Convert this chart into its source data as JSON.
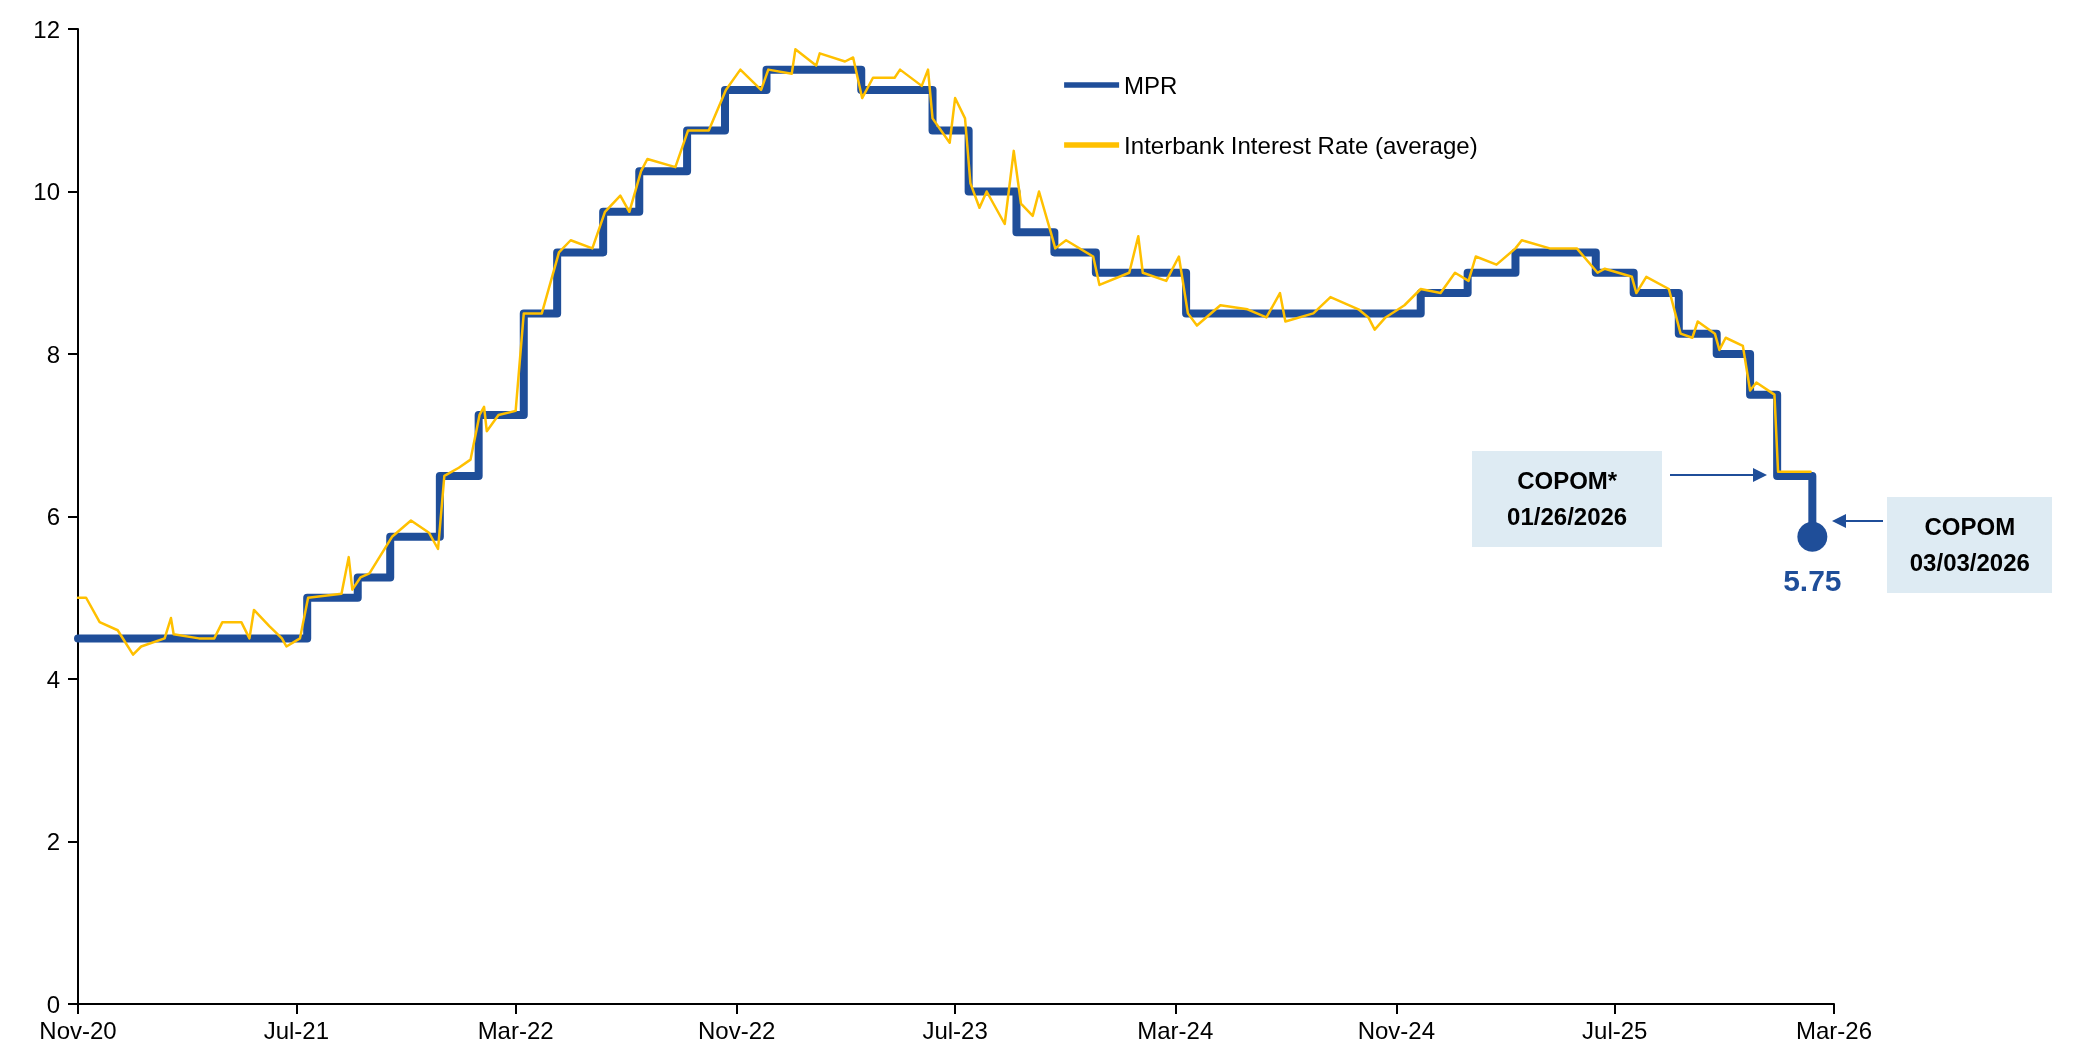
{
  "chart_data": {
    "type": "line",
    "xlim": [
      "2020-11-01",
      "2026-03-01"
    ],
    "xticks": [
      {
        "value": "2020-11-01",
        "label": "Nov-20"
      },
      {
        "value": "2021-07-01",
        "label": "Jul-21"
      },
      {
        "value": "2022-03-01",
        "label": "Mar-22"
      },
      {
        "value": "2022-11-01",
        "label": "Nov-22"
      },
      {
        "value": "2023-07-01",
        "label": "Jul-23"
      },
      {
        "value": "2024-03-01",
        "label": "Mar-24"
      },
      {
        "value": "2024-11-01",
        "label": "Nov-24"
      },
      {
        "value": "2025-07-01",
        "label": "Jul-25"
      },
      {
        "value": "2026-03-01",
        "label": "Mar-26"
      }
    ],
    "ylim": [
      0,
      12
    ],
    "yticks": [
      0,
      2,
      4,
      6,
      8,
      10,
      12
    ],
    "grid": false,
    "legend": "top right",
    "series": [
      {
        "name": "MPR",
        "type": "step",
        "color": "#1f4e99",
        "x": [
          "2020-11-01",
          "2021-07-13",
          "2021-09-07",
          "2021-10-13",
          "2021-12-07",
          "2022-01-19",
          "2022-03-10",
          "2022-04-16",
          "2022-06-06",
          "2022-07-16",
          "2022-09-07",
          "2022-10-19",
          "2022-12-04",
          "2023-03-19",
          "2023-06-06",
          "2023-07-16",
          "2023-09-07",
          "2023-10-19",
          "2023-12-04",
          "2024-03-13",
          "2024-11-28",
          "2025-01-19",
          "2025-03-13",
          "2025-06-10",
          "2025-07-22",
          "2025-09-10",
          "2025-10-22",
          "2025-11-28",
          "2025-12-28",
          "2026-02-05"
        ],
        "values": [
          4.5,
          5.0,
          5.25,
          5.75,
          6.5,
          7.25,
          8.5,
          9.25,
          9.75,
          10.25,
          10.75,
          11.25,
          11.5,
          11.25,
          10.75,
          10.0,
          9.5,
          9.25,
          9.0,
          8.5,
          8.75,
          9.0,
          9.25,
          9.0,
          8.75,
          8.25,
          8.0,
          7.5,
          6.5,
          5.75
        ],
        "value_labels": [
          null,
          null,
          null,
          null,
          null,
          null,
          null,
          null,
          null,
          null,
          null,
          null,
          null,
          null,
          null,
          null,
          null,
          null,
          null,
          null,
          null,
          null,
          null,
          null,
          null,
          null,
          null,
          null,
          null,
          "5.75"
        ]
      },
      {
        "name": "Interbank Interest Rate (average)",
        "color": "#ffc000",
        "x": [
          "2020-11-01",
          "2020-11-10",
          "2020-11-25",
          "2020-12-15",
          "2021-01-01",
          "2021-01-10",
          "2021-02-05",
          "2021-02-12",
          "2021-02-15",
          "2021-03-15",
          "2021-04-01",
          "2021-04-10",
          "2021-05-01",
          "2021-05-10",
          "2021-05-15",
          "2021-06-01",
          "2021-06-15",
          "2021-06-20",
          "2021-07-05",
          "2021-07-14",
          "2021-08-20",
          "2021-08-28",
          "2021-09-01",
          "2021-09-10",
          "2021-09-20",
          "2021-10-15",
          "2021-11-05",
          "2021-11-25",
          "2021-12-05",
          "2021-12-12",
          "2021-12-28",
          "2022-01-10",
          "2022-01-20",
          "2022-01-25",
          "2022-01-28",
          "2022-02-10",
          "2022-03-01",
          "2022-03-10",
          "2022-03-30",
          "2022-04-18",
          "2022-05-01",
          "2022-05-25",
          "2022-06-08",
          "2022-06-25",
          "2022-07-05",
          "2022-07-18",
          "2022-07-25",
          "2022-08-25",
          "2022-09-08",
          "2022-10-01",
          "2022-10-20",
          "2022-11-05",
          "2022-11-28",
          "2022-12-06",
          "2023-01-01",
          "2023-01-05",
          "2023-01-28",
          "2023-02-01",
          "2023-03-01",
          "2023-03-10",
          "2023-03-20",
          "2023-04-01",
          "2023-04-25",
          "2023-05-01",
          "2023-05-25",
          "2023-06-01",
          "2023-06-06",
          "2023-06-25",
          "2023-07-01",
          "2023-07-12",
          "2023-07-18",
          "2023-07-28",
          "2023-08-05",
          "2023-08-25",
          "2023-09-04",
          "2023-09-12",
          "2023-09-25",
          "2023-10-02",
          "2023-10-15",
          "2023-10-20",
          "2023-11-01",
          "2023-12-01",
          "2023-12-08",
          "2024-01-10",
          "2024-01-20",
          "2024-01-25",
          "2024-02-20",
          "2024-03-05",
          "2024-03-15",
          "2024-03-25",
          "2024-04-20",
          "2024-05-20",
          "2024-06-10",
          "2024-06-25",
          "2024-07-01",
          "2024-08-01",
          "2024-08-20",
          "2024-09-20",
          "2024-10-01",
          "2024-10-08",
          "2024-10-20",
          "2024-11-10",
          "2024-11-28",
          "2024-12-20",
          "2025-01-05",
          "2025-01-20",
          "2025-01-28",
          "2025-02-20",
          "2025-03-13",
          "2025-03-20",
          "2025-04-20",
          "2025-05-20",
          "2025-06-12",
          "2025-06-20",
          "2025-07-20",
          "2025-07-25",
          "2025-08-05",
          "2025-08-30",
          "2025-09-12",
          "2025-09-25",
          "2025-10-01",
          "2025-10-20",
          "2025-10-25",
          "2025-11-01",
          "2025-11-20",
          "2025-11-28",
          "2025-12-05",
          "2025-12-25",
          "2025-12-29",
          "2026-01-15",
          "2026-02-03"
        ],
        "values": [
          5.0,
          5.0,
          4.7,
          4.6,
          4.3,
          4.4,
          4.5,
          4.75,
          4.55,
          4.5,
          4.5,
          4.7,
          4.7,
          4.5,
          4.85,
          4.65,
          4.5,
          4.4,
          4.5,
          5.0,
          5.05,
          5.5,
          5.1,
          5.25,
          5.3,
          5.75,
          5.95,
          5.8,
          5.6,
          6.5,
          6.6,
          6.7,
          7.25,
          7.35,
          7.05,
          7.25,
          7.3,
          8.5,
          8.5,
          9.25,
          9.4,
          9.3,
          9.75,
          9.95,
          9.75,
          10.25,
          10.4,
          10.3,
          10.75,
          10.75,
          11.25,
          11.5,
          11.25,
          11.5,
          11.45,
          11.75,
          11.55,
          11.7,
          11.6,
          11.65,
          11.15,
          11.4,
          11.4,
          11.5,
          11.3,
          11.5,
          10.9,
          10.6,
          11.15,
          10.9,
          10.1,
          9.8,
          10.0,
          9.6,
          10.5,
          9.85,
          9.7,
          10.0,
          9.5,
          9.3,
          9.4,
          9.2,
          8.85,
          9.0,
          9.45,
          9.0,
          8.9,
          9.2,
          8.5,
          8.35,
          8.6,
          8.55,
          8.45,
          8.75,
          8.4,
          8.5,
          8.7,
          8.55,
          8.45,
          8.3,
          8.45,
          8.6,
          8.8,
          8.75,
          9.0,
          8.9,
          9.2,
          9.1,
          9.3,
          9.4,
          9.3,
          9.3,
          9.0,
          9.05,
          8.95,
          8.75,
          8.95,
          8.8,
          8.25,
          8.2,
          8.4,
          8.25,
          8.05,
          8.2,
          8.1,
          7.55,
          7.65,
          7.5,
          6.55,
          6.55,
          6.55
        ]
      }
    ],
    "annotations": [
      "COPOM*\n01/26/2026",
      "COPOM\n03/03/2026"
    ]
  }
}
